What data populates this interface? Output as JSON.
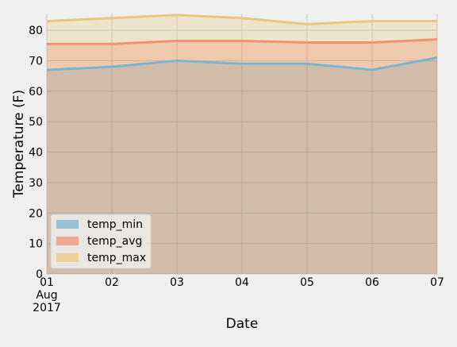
{
  "chart_data": {
    "type": "area",
    "xlabel": "Date",
    "ylabel": "Temperature (F)",
    "x": [
      "01",
      "02",
      "03",
      "04",
      "05",
      "06",
      "07"
    ],
    "x_first_extra": [
      "Aug",
      "2017"
    ],
    "ylim": [
      0,
      85.5
    ],
    "yticks": [
      0,
      10,
      20,
      30,
      40,
      50,
      60,
      70,
      80
    ],
    "grid": true,
    "legend_position": "lower-left",
    "stacked": false,
    "series": [
      {
        "name": "temp_min",
        "values": [
          67,
          68,
          70,
          69,
          69,
          67,
          71
        ],
        "fill": "#008fd5",
        "line": "#7ab6cf"
      },
      {
        "name": "temp_avg",
        "values": [
          75.5,
          75.5,
          76.5,
          76.5,
          76,
          76,
          77
        ],
        "fill": "#fc4f30",
        "line": "#ef9373"
      },
      {
        "name": "temp_max",
        "values": [
          83,
          84,
          85,
          84,
          82,
          83,
          83
        ],
        "fill": "#e5ae38",
        "line": "#ecc67c"
      }
    ],
    "colors": {
      "background": "#f0f0f0",
      "plot_background": "#f0f0f0",
      "grid": "#cbcbcb",
      "overlap_fill": "#cdab8e"
    }
  }
}
